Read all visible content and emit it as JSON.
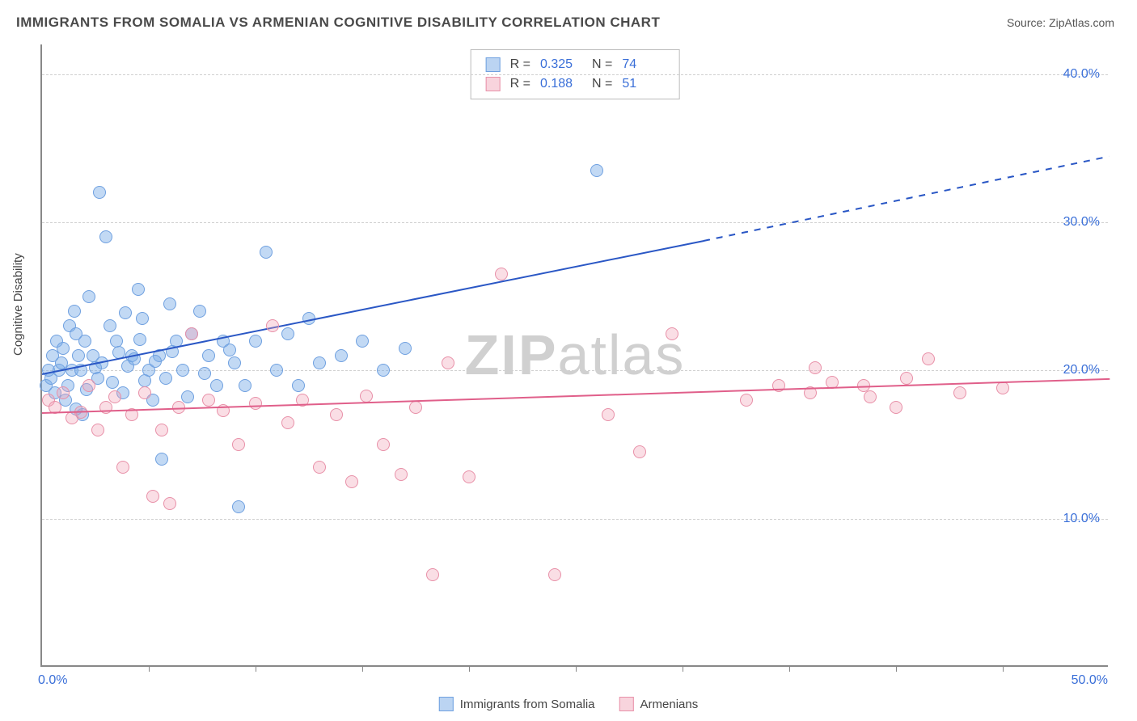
{
  "title": "IMMIGRANTS FROM SOMALIA VS ARMENIAN COGNITIVE DISABILITY CORRELATION CHART",
  "source": "Source: ZipAtlas.com",
  "y_axis_label": "Cognitive Disability",
  "watermark_prefix": "ZIP",
  "watermark_suffix": "atlas",
  "chart": {
    "type": "scatter",
    "xlim": [
      0,
      50
    ],
    "ylim": [
      0,
      42
    ],
    "x_tick_step": 5,
    "x_start_label": "0.0%",
    "x_end_label": "50.0%",
    "y_ticks": [
      10,
      20,
      30,
      40
    ],
    "y_tick_labels": [
      "10.0%",
      "20.0%",
      "30.0%",
      "40.0%"
    ],
    "background_color": "#ffffff",
    "grid_color": "#d0d0d0",
    "marker_size": 16,
    "series": [
      {
        "name": "Immigrants from Somalia",
        "key": "blue",
        "color_fill": "rgba(120,170,230,0.45)",
        "color_stroke": "#6fa0e0",
        "R": "0.325",
        "N": "74",
        "regression": {
          "x1": 0,
          "y1": 19.8,
          "x2": 31,
          "y2": 28.8,
          "color": "#2a57c5",
          "dashed_extend_to_x": 50,
          "dashed_extend_to_y": 34.5
        },
        "points": [
          [
            0.2,
            19
          ],
          [
            0.3,
            20
          ],
          [
            0.4,
            19.5
          ],
          [
            0.5,
            21
          ],
          [
            0.6,
            18.5
          ],
          [
            0.7,
            22
          ],
          [
            0.8,
            20
          ],
          [
            0.9,
            20.5
          ],
          [
            1.0,
            21.5
          ],
          [
            1.1,
            18
          ],
          [
            1.2,
            19
          ],
          [
            1.3,
            23
          ],
          [
            1.4,
            20
          ],
          [
            1.5,
            24
          ],
          [
            1.6,
            22.5
          ],
          [
            1.7,
            21
          ],
          [
            1.8,
            20
          ],
          [
            2.0,
            22
          ],
          [
            2.2,
            25
          ],
          [
            2.4,
            21
          ],
          [
            2.6,
            19.5
          ],
          [
            2.8,
            20.5
          ],
          [
            3.0,
            29
          ],
          [
            3.2,
            23
          ],
          [
            3.5,
            22
          ],
          [
            3.8,
            18.5
          ],
          [
            4.0,
            20.3
          ],
          [
            4.2,
            21
          ],
          [
            4.5,
            25.5
          ],
          [
            4.7,
            23.5
          ],
          [
            5.0,
            20
          ],
          [
            5.2,
            18
          ],
          [
            5.5,
            21
          ],
          [
            5.8,
            19.5
          ],
          [
            6.0,
            24.5
          ],
          [
            6.3,
            22
          ],
          [
            6.6,
            20
          ],
          [
            7.0,
            22.5
          ],
          [
            7.4,
            24
          ],
          [
            7.8,
            21
          ],
          [
            8.2,
            19
          ],
          [
            8.5,
            22
          ],
          [
            9.0,
            20.5
          ],
          [
            9.5,
            19
          ],
          [
            10.0,
            22
          ],
          [
            10.5,
            28
          ],
          [
            11.0,
            20
          ],
          [
            11.5,
            22.5
          ],
          [
            12.0,
            19
          ],
          [
            12.5,
            23.5
          ],
          [
            13.0,
            20.5
          ],
          [
            14.0,
            21
          ],
          [
            15.0,
            22
          ],
          [
            16.0,
            20
          ],
          [
            17.0,
            21.5
          ],
          [
            2.7,
            32
          ],
          [
            4.3,
            20.8
          ],
          [
            5.6,
            14
          ],
          [
            1.9,
            17
          ],
          [
            9.2,
            10.8
          ],
          [
            26.0,
            33.5
          ],
          [
            3.6,
            21.2
          ],
          [
            4.8,
            19.3
          ],
          [
            6.8,
            18.2
          ],
          [
            7.6,
            19.8
          ],
          [
            8.8,
            21.4
          ],
          [
            3.3,
            19.2
          ],
          [
            2.1,
            18.7
          ],
          [
            1.6,
            17.4
          ],
          [
            2.5,
            20.2
          ],
          [
            3.9,
            23.9
          ],
          [
            4.6,
            22.1
          ],
          [
            5.3,
            20.6
          ],
          [
            6.1,
            21.3
          ]
        ]
      },
      {
        "name": "Armenians",
        "key": "pink",
        "color_fill": "rgba(240,160,180,0.35)",
        "color_stroke": "#e890a8",
        "R": "0.188",
        "N": "51",
        "regression": {
          "x1": 0,
          "y1": 17.2,
          "x2": 50,
          "y2": 19.5,
          "color": "#e05f8a"
        },
        "points": [
          [
            0.3,
            18
          ],
          [
            0.6,
            17.5
          ],
          [
            1.0,
            18.5
          ],
          [
            1.4,
            16.8
          ],
          [
            1.8,
            17.2
          ],
          [
            2.2,
            19
          ],
          [
            2.6,
            16
          ],
          [
            3.0,
            17.5
          ],
          [
            3.4,
            18.2
          ],
          [
            3.8,
            13.5
          ],
          [
            4.2,
            17
          ],
          [
            4.8,
            18.5
          ],
          [
            5.2,
            11.5
          ],
          [
            5.6,
            16
          ],
          [
            6.0,
            11
          ],
          [
            6.4,
            17.5
          ],
          [
            7.0,
            22.5
          ],
          [
            7.8,
            18
          ],
          [
            8.5,
            17.3
          ],
          [
            9.2,
            15
          ],
          [
            10.0,
            17.8
          ],
          [
            10.8,
            23
          ],
          [
            11.5,
            16.5
          ],
          [
            12.2,
            18
          ],
          [
            13.0,
            13.5
          ],
          [
            13.8,
            17
          ],
          [
            14.5,
            12.5
          ],
          [
            15.2,
            18.3
          ],
          [
            16.0,
            15
          ],
          [
            16.8,
            13
          ],
          [
            17.5,
            17.5
          ],
          [
            18.3,
            6.2
          ],
          [
            19.0,
            20.5
          ],
          [
            20.0,
            12.8
          ],
          [
            21.5,
            26.5
          ],
          [
            24.0,
            6.2
          ],
          [
            26.5,
            17
          ],
          [
            28.0,
            14.5
          ],
          [
            29.5,
            22.5
          ],
          [
            33.0,
            18
          ],
          [
            34.5,
            19
          ],
          [
            36.0,
            18.5
          ],
          [
            37.0,
            19.2
          ],
          [
            38.5,
            19
          ],
          [
            40.0,
            17.5
          ],
          [
            41.5,
            20.8
          ],
          [
            43.0,
            18.5
          ],
          [
            45.0,
            18.8
          ],
          [
            36.2,
            20.2
          ],
          [
            38.8,
            18.2
          ],
          [
            40.5,
            19.5
          ]
        ]
      }
    ]
  },
  "legend_bottom": [
    {
      "swatch": "blue",
      "label": "Immigrants from Somalia"
    },
    {
      "swatch": "pink",
      "label": "Armenians"
    }
  ]
}
